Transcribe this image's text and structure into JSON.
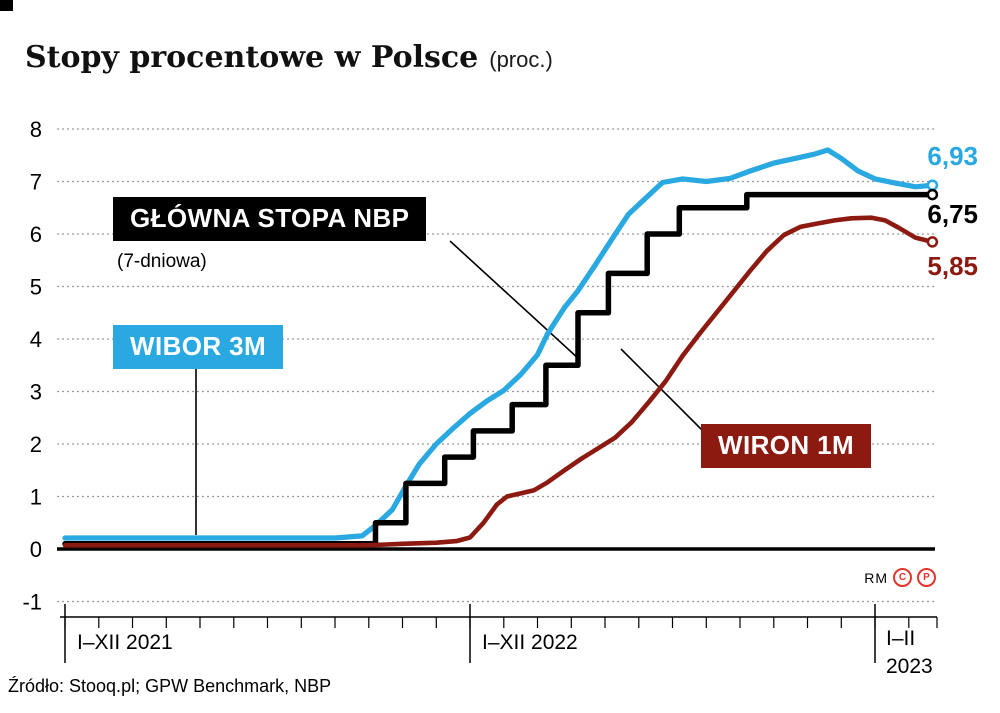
{
  "header": {
    "title": "Stopy procentowe w Polsce",
    "subtitle": "(proc.)"
  },
  "chart_data": {
    "type": "line",
    "title": "Stopy procentowe w Polsce",
    "unit": "proc.",
    "x_unit": "months since January 2021 (0 = I 2021)",
    "grid": "dotted horizontal",
    "legend_position": "callout boxes on plot",
    "y_axis": {
      "min": -1,
      "max": 8,
      "ticks": [
        8,
        7,
        6,
        5,
        4,
        3,
        2,
        1,
        0,
        -1
      ]
    },
    "x_axis": {
      "labels": [
        {
          "text": "I–XII 2021",
          "month": 0
        },
        {
          "text": "I–XII 2022",
          "month": 12
        },
        {
          "text": "I–II",
          "text2": "2023",
          "month": 24
        }
      ]
    },
    "series": [
      {
        "id": "wibor3m",
        "name": "WIBOR 3M",
        "color": "#29a8e1",
        "end_label": "6,93",
        "final_value": 6.93,
        "points": [
          [
            0,
            0.21
          ],
          [
            8,
            0.21
          ],
          [
            8.8,
            0.25
          ],
          [
            9.2,
            0.45
          ],
          [
            9.7,
            0.75
          ],
          [
            10.1,
            1.2
          ],
          [
            10.5,
            1.62
          ],
          [
            11,
            2.0
          ],
          [
            11.5,
            2.3
          ],
          [
            12,
            2.58
          ],
          [
            12.5,
            2.82
          ],
          [
            13,
            3.02
          ],
          [
            13.5,
            3.32
          ],
          [
            14,
            3.7
          ],
          [
            14.3,
            4.1
          ],
          [
            14.8,
            4.6
          ],
          [
            15.2,
            4.92
          ],
          [
            15.7,
            5.4
          ],
          [
            16.2,
            5.9
          ],
          [
            16.7,
            6.38
          ],
          [
            17.2,
            6.68
          ],
          [
            17.7,
            6.98
          ],
          [
            18.3,
            7.05
          ],
          [
            19,
            7.0
          ],
          [
            19.7,
            7.06
          ],
          [
            20.3,
            7.2
          ],
          [
            21,
            7.35
          ],
          [
            21.7,
            7.45
          ],
          [
            22.2,
            7.52
          ],
          [
            22.6,
            7.6
          ],
          [
            23,
            7.44
          ],
          [
            23.5,
            7.2
          ],
          [
            24,
            7.05
          ],
          [
            24.6,
            6.97
          ],
          [
            25.2,
            6.9
          ],
          [
            25.7,
            6.93
          ]
        ]
      },
      {
        "id": "nbp",
        "name": "GŁÓWNA STOPA NBP",
        "sub": "(7-dniowa)",
        "color": "#000000",
        "step": true,
        "end_label": "6,75",
        "final_value": 6.75,
        "points": [
          [
            0,
            0.1
          ],
          [
            9.2,
            0.5
          ],
          [
            10.1,
            1.25
          ],
          [
            11.25,
            1.75
          ],
          [
            12.1,
            2.25
          ],
          [
            13.25,
            2.75
          ],
          [
            14.25,
            3.5
          ],
          [
            15.2,
            4.5
          ],
          [
            16.1,
            5.25
          ],
          [
            17.25,
            6.0
          ],
          [
            18.2,
            6.5
          ],
          [
            20.2,
            6.75
          ],
          [
            25.7,
            6.75
          ]
        ]
      },
      {
        "id": "wiron1m",
        "name": "WIRON 1M",
        "color": "#8c1a10",
        "end_label": "5,85",
        "final_value": 5.85,
        "points": [
          [
            0,
            0.07
          ],
          [
            9,
            0.07
          ],
          [
            10,
            0.1
          ],
          [
            11,
            0.12
          ],
          [
            11.6,
            0.15
          ],
          [
            12,
            0.22
          ],
          [
            12.4,
            0.5
          ],
          [
            12.8,
            0.85
          ],
          [
            13.1,
            1.0
          ],
          [
            13.5,
            1.06
          ],
          [
            13.9,
            1.12
          ],
          [
            14.3,
            1.27
          ],
          [
            14.8,
            1.5
          ],
          [
            15.3,
            1.72
          ],
          [
            15.8,
            1.92
          ],
          [
            16.3,
            2.12
          ],
          [
            16.8,
            2.42
          ],
          [
            17.3,
            2.8
          ],
          [
            17.8,
            3.2
          ],
          [
            18.3,
            3.68
          ],
          [
            18.8,
            4.1
          ],
          [
            19.3,
            4.5
          ],
          [
            19.8,
            4.9
          ],
          [
            20.3,
            5.3
          ],
          [
            20.8,
            5.68
          ],
          [
            21.3,
            5.98
          ],
          [
            21.8,
            6.14
          ],
          [
            22.3,
            6.2
          ],
          [
            22.8,
            6.26
          ],
          [
            23.3,
            6.3
          ],
          [
            23.9,
            6.31
          ],
          [
            24.3,
            6.26
          ],
          [
            24.7,
            6.12
          ],
          [
            25.2,
            5.93
          ],
          [
            25.7,
            5.85
          ]
        ]
      }
    ]
  },
  "footer": {
    "source": "Źródło: Stooq.pl; GPW Benchmark, NBP",
    "brand": "RM",
    "icon_c": "C",
    "icon_p": "P"
  }
}
